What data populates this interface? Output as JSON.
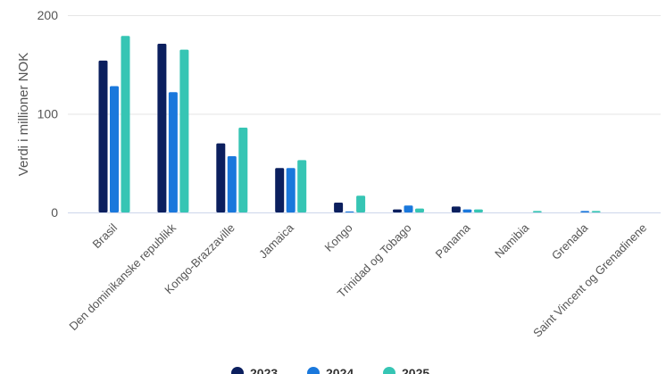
{
  "chart_data": {
    "type": "bar",
    "title": "",
    "xlabel": "",
    "ylabel": "Verdi i millioner NOK",
    "ylim": [
      0,
      200
    ],
    "yticks": [
      "0",
      "100",
      "200"
    ],
    "grid": true,
    "legend_position": "bottom",
    "categories": [
      "Brasil",
      "Den dominikanske republikk",
      "Kongo-Brazzaville",
      "Jamaica",
      "Kongo",
      "Trinidad og Tobago",
      "Panama",
      "Namibia",
      "Grenada",
      "Saint Vincent og Grenadinene"
    ],
    "series": [
      {
        "name": "2023",
        "color": "#0b1f5e",
        "values": [
          154,
          171,
          70,
          45,
          10,
          3,
          6,
          0,
          0,
          0
        ]
      },
      {
        "name": "2024",
        "color": "#1a78dc",
        "values": [
          128,
          122,
          57,
          45,
          1,
          7,
          3,
          0,
          1.5,
          0
        ]
      },
      {
        "name": "2025",
        "color": "#36c5b4",
        "values": [
          179,
          165,
          86,
          53,
          17,
          4,
          3,
          1.5,
          1.5,
          0
        ]
      }
    ]
  }
}
